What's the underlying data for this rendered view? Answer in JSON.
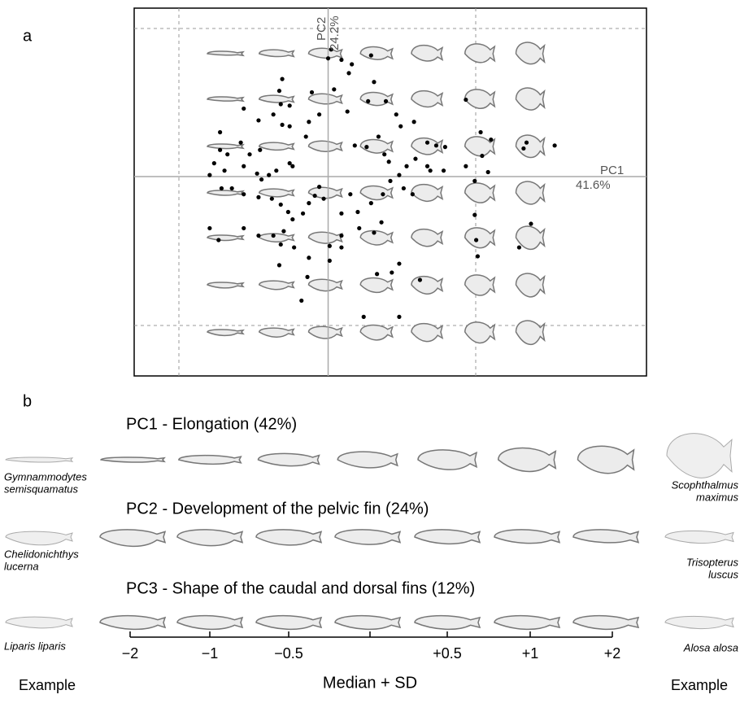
{
  "chart_data": {
    "type": "scatter",
    "color": "#000000",
    "x_axis_label": "PC1",
    "x_axis_share": "41.6%",
    "y_axis_label": "PC2",
    "y_axis_share": "24.2%",
    "xlim": [
      -1.31,
      2.15
    ],
    "ylim": [
      -1.35,
      1.14
    ],
    "x": [
      0.02,
      0.09,
      0.16,
      0.29,
      0.14,
      0,
      -0.31,
      -0.33,
      -0.11,
      0.04,
      -0.32,
      -0.26,
      -0.37,
      -0.57,
      -0.47,
      -0.31,
      -0.26,
      -0.13,
      -0.15,
      -0.06,
      0.13,
      0.27,
      0.31,
      0.39,
      0.46,
      0.49,
      0.58,
      0.34,
      0.26,
      0.38,
      0.18,
      0.41,
      0.53,
      0.67,
      0.73,
      0.79,
      0.59,
      0.67,
      0.69,
      0.78,
      0.93,
      1.03,
      1.04,
      1.1,
      0.93,
      1.08,
      1.32,
      1.34,
      1.53,
      1.37,
      1.29,
      0.99,
      0.99,
      1.0,
      1.01,
      -0.73,
      -0.73,
      -0.77,
      -0.8,
      -0.7,
      -0.59,
      -0.68,
      -0.53,
      -0.46,
      -0.57,
      -0.48,
      -0.45,
      -0.4,
      -0.35,
      -0.26,
      -0.24,
      -0.57,
      -0.65,
      -0.72,
      -0.47,
      -0.38,
      -0.32,
      -0.27,
      -0.24,
      -0.17,
      -0.13,
      -0.09,
      -0.06,
      -0.03,
      0.09,
      0.15,
      0.2,
      0.29,
      0.37,
      0.42,
      0.48,
      0.51,
      0.57,
      0.21,
      0.31,
      0.09,
      0.01,
      0.01,
      -0.13,
      -0.23,
      -0.32,
      -0.37,
      -0.3,
      -0.47,
      -0.57,
      -0.8,
      -0.74,
      -0.33,
      -0.14,
      0.33,
      0.43,
      0.48,
      0.62,
      -0.18,
      0.24,
      0.48,
      0.36,
      0.09
    ],
    "values": [
      0.86,
      0.79,
      0.76,
      0.82,
      0.7,
      0.8,
      0.66,
      0.58,
      0.57,
      0.59,
      0.49,
      0.48,
      0.42,
      0.46,
      0.38,
      0.35,
      0.34,
      0.37,
      0.27,
      0.42,
      0.44,
      0.51,
      0.64,
      0.51,
      0.42,
      0.34,
      0.37,
      0.27,
      0.2,
      0.15,
      0.21,
      0.1,
      0.07,
      0.23,
      0.21,
      0.2,
      0.12,
      0.07,
      0.04,
      0.04,
      0.52,
      0.3,
      0.14,
      0.25,
      0.07,
      0.03,
      0.19,
      0.23,
      0.21,
      -0.32,
      -0.48,
      -0.03,
      -0.26,
      -0.43,
      -0.54,
      0.3,
      0.18,
      0.09,
      0.01,
      0.04,
      0.23,
      0.15,
      0.15,
      0.18,
      0.07,
      0.02,
      -0.02,
      0.01,
      0.04,
      0.09,
      0.07,
      -0.12,
      -0.08,
      -0.08,
      -0.14,
      -0.15,
      -0.19,
      -0.24,
      -0.29,
      -0.25,
      -0.18,
      -0.13,
      -0.07,
      -0.15,
      -0.25,
      -0.12,
      -0.24,
      -0.18,
      -0.12,
      -0.03,
      0.01,
      -0.08,
      -0.12,
      -0.35,
      -0.38,
      -0.4,
      -0.47,
      -0.57,
      -0.55,
      -0.48,
      -0.46,
      -0.4,
      -0.37,
      -0.4,
      -0.35,
      -0.35,
      -0.43,
      -0.6,
      -0.68,
      -0.66,
      -0.65,
      -0.59,
      -0.7,
      -0.84,
      -0.95,
      -0.95,
      -0.31,
      -0.48
    ]
  },
  "panel_a": {
    "label": "a"
  },
  "panel_b": {
    "label": "b",
    "rows": [
      {
        "title": "PC1 - Elongation (42%)",
        "left_example": [
          "Gymnammodytes",
          "semisquamatus"
        ],
        "right_example": [
          "Scophthalmus",
          "maximus"
        ]
      },
      {
        "title": "PC2 - Development of the pelvic fin (24%)",
        "left_example": [
          "Chelidonichthys",
          "lucerna"
        ],
        "right_example": [
          "Trisopterus",
          "luscus"
        ]
      },
      {
        "title": "PC3 - Shape of the caudal and dorsal fins (12%)",
        "left_example": [
          "Liparis liparis"
        ],
        "right_example": [
          "Alosa alosa"
        ]
      }
    ],
    "scale": {
      "ticks": [
        "−2",
        "−1",
        "−0.5",
        "+0.5",
        "+1",
        "+2"
      ],
      "title": "Median + SD",
      "left_caption": "Example",
      "right_caption": "Example"
    }
  }
}
